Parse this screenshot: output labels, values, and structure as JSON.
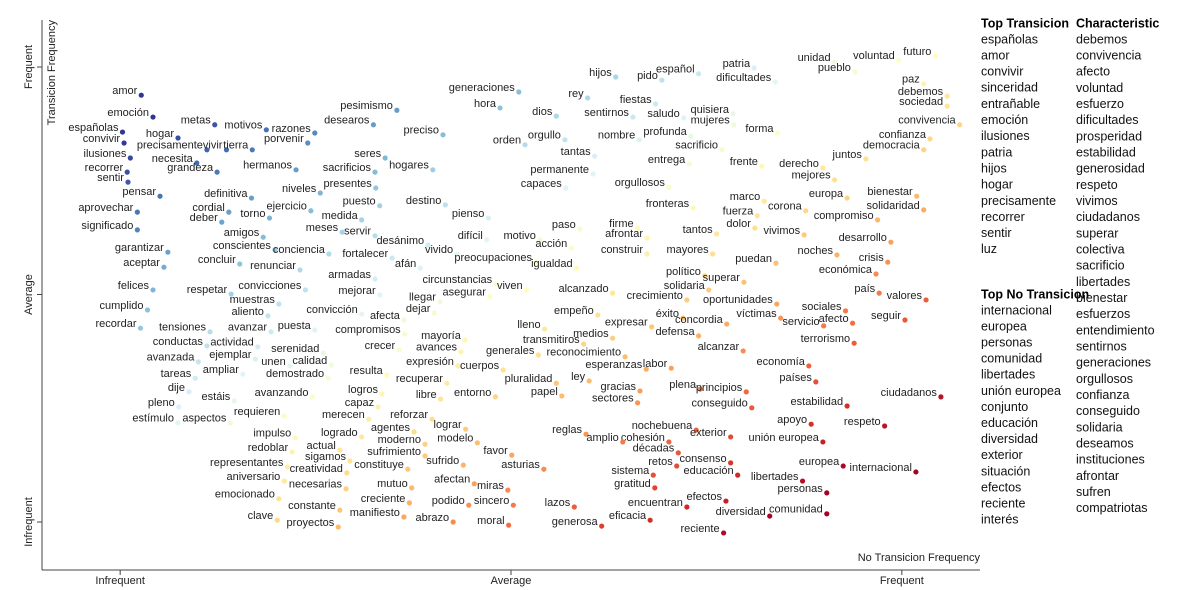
{
  "chart_data": {
    "type": "scatter",
    "x_label": "No Transicion Frequency",
    "y_label": "Transicion Frequency",
    "xlim": [
      -0.1,
      1.1
    ],
    "ylim": [
      -0.1,
      1.1
    ],
    "xticks": [
      {
        "value": 0,
        "label": "Infrequent"
      },
      {
        "value": 0.5,
        "label": "Average"
      },
      {
        "value": 1,
        "label": "Frequent"
      }
    ],
    "yticks": [
      {
        "value": 0,
        "label": "Infrequent"
      },
      {
        "value": 0.5,
        "label": "Average"
      },
      {
        "value": 1,
        "label": "Frequent"
      }
    ],
    "colors": [
      "#a50026",
      "#d73027",
      "#f46d43",
      "#fdae61",
      "#fee090",
      "#ffffbf",
      "#e0f3f8",
      "#abd9e9",
      "#74add1",
      "#4575b4",
      "#313695"
    ],
    "labels": [
      "amor",
      "emoción",
      "españolas",
      "hogar",
      "convivir",
      "precisamente",
      "vivir",
      "necesita",
      "ilusiones",
      "grandeza",
      "recorrer",
      "sentir",
      "metas",
      "motivos",
      "tierra",
      "razones",
      "porvenir",
      "hermanos",
      "pesimismo",
      "desearos",
      "pensar",
      "definitiva",
      "aprovechar",
      "cordial",
      "deber",
      "significado",
      "niveles",
      "presentes",
      "sacrificios",
      "seres",
      "ejercicio",
      "torno",
      "puesto",
      "medida",
      "servir",
      "meses",
      "amigos",
      "conscientes",
      "conciencia",
      "garantizar",
      "aceptar",
      "concluir",
      "renunciar",
      "desánimo",
      "fortalecer",
      "afán",
      "vivido",
      "armadas",
      "felices",
      "respetar",
      "convicciones",
      "mejorar",
      "cumplido",
      "muestras",
      "aliento",
      "recordar",
      "convicción",
      "llegar",
      "dejar",
      "tensiones",
      "avanzar",
      "puesta",
      "afecta",
      "compromisos",
      "conductas",
      "actividad",
      "ejemplar",
      "avanzada",
      "serenidad",
      "unen",
      "calidad",
      "crecer",
      "ampliar",
      "demostrado",
      "resulta",
      "tareas",
      "dije",
      "estáis",
      "avanzando",
      "logros",
      "capaz",
      "pleno",
      "requieren",
      "estímulo",
      "aspectos",
      "merecen",
      "reforzar",
      "agentes",
      "logrado",
      "impulso",
      "redoblar",
      "actual",
      "moderno",
      "sufrimiento",
      "sigamos",
      "representantes",
      "creatividad",
      "constituye",
      "aniversario",
      "necesarias",
      "mutuo",
      "emocionado",
      "creciente",
      "constante",
      "manifiesto",
      "clave",
      "proyectos",
      "generaciones",
      "hora",
      "dios",
      "rey",
      "hijos",
      "preciso",
      "orden",
      "orgullo",
      "tantas",
      "hogares",
      "permanente",
      "capaces",
      "destino",
      "pienso",
      "paso",
      "difícil",
      "motivo",
      "acción",
      "preocupaciones",
      "igualdad",
      "circunstancias",
      "asegurar",
      "viven",
      "alcanzado",
      "sentirnos",
      "fiestas",
      "pido",
      "español",
      "saludo",
      "quisiera",
      "mujeres",
      "nombre",
      "profunda",
      "sacrificio",
      "forma",
      "patria",
      "dificultades",
      "unidad",
      "pueblo",
      "voluntad",
      "futuro",
      "paz",
      "debemos",
      "sociedad",
      "convivencia",
      "confianza",
      "democracia",
      "juntos",
      "entrega",
      "frente",
      "derecho",
      "mejores",
      "orgullosos",
      "europa",
      "bienestar",
      "solidaridad",
      "fronteras",
      "marco",
      "fuerza",
      "corona",
      "compromiso",
      "dolor",
      "firme",
      "afrontar",
      "tantos",
      "vivimos",
      "desarrollo",
      "construir",
      "mayores",
      "noches",
      "crisis",
      "puedan",
      "político",
      "económica",
      "superar",
      "solidaria",
      "país",
      "valores",
      "crecimiento",
      "oportunidades",
      "sociales",
      "empeño",
      "éxito",
      "víctimas",
      "seguir",
      "servicio",
      "afecto",
      "expresar",
      "concordia",
      "lleno",
      "medios",
      "defensa",
      "transmitiros",
      "terrorismo",
      "mayoría",
      "avances",
      "generales",
      "alcanzar",
      "reconocimiento",
      "expresión",
      "cuerpos",
      "esperanzas",
      "labor",
      "economía",
      "ley",
      "recuperar",
      "pluralidad",
      "países",
      "plena",
      "gracias",
      "principios",
      "papel",
      "libre",
      "entorno",
      "ciudadanos",
      "sectores",
      "estabilidad",
      "conseguido",
      "apoyo",
      "respeto",
      "lograr",
      "reglas",
      "nochebuena",
      "exterior",
      "cohesión",
      "amplio",
      "unión europea",
      "modelo",
      "favor",
      "décadas",
      "sufrido",
      "consenso",
      "retos",
      "asturias",
      "europea",
      "internacional",
      "sistema",
      "educación",
      "libertades",
      "afectan",
      "gratitud",
      "miras",
      "personas",
      "podido",
      "sincero",
      "lazos",
      "efectos",
      "encuentran",
      "comunidad",
      "diversidad",
      "abrazo",
      "moral",
      "generosa",
      "eficacia",
      "reciente"
    ],
    "x": [
      0.027,
      0.042,
      0.003,
      0.074,
      0.005,
      0.111,
      0.136,
      0.098,
      0.013,
      0.124,
      0.009,
      0.01,
      0.121,
      0.187,
      0.169,
      0.249,
      0.24,
      0.225,
      0.354,
      0.324,
      0.051,
      0.168,
      0.022,
      0.139,
      0.13,
      0.022,
      0.256,
      0.327,
      0.326,
      0.339,
      0.244,
      0.191,
      0.332,
      0.309,
      0.326,
      0.284,
      0.183,
      0.198,
      0.267,
      0.061,
      0.056,
      0.153,
      0.23,
      0.394,
      0.348,
      0.384,
      0.431,
      0.326,
      0.042,
      0.142,
      0.237,
      0.332,
      0.035,
      0.203,
      0.189,
      0.026,
      0.309,
      0.409,
      0.402,
      0.115,
      0.193,
      0.249,
      0.363,
      0.364,
      0.111,
      0.176,
      0.173,
      0.1,
      0.26,
      0.217,
      0.27,
      0.357,
      0.157,
      0.266,
      0.341,
      0.096,
      0.088,
      0.146,
      0.246,
      0.335,
      0.33,
      0.075,
      0.21,
      0.074,
      0.141,
      0.318,
      0.399,
      0.376,
      0.309,
      0.224,
      0.22,
      0.281,
      0.39,
      0.39,
      0.294,
      0.214,
      0.29,
      0.368,
      0.21,
      0.289,
      0.373,
      0.203,
      0.37,
      0.281,
      0.363,
      0.201,
      0.279,
      0.51,
      0.486,
      0.558,
      0.598,
      0.634,
      0.413,
      0.518,
      0.569,
      0.607,
      0.4,
      0.605,
      0.57,
      0.416,
      0.471,
      0.588,
      0.469,
      0.537,
      0.577,
      0.532,
      0.584,
      0.481,
      0.473,
      0.52,
      0.63,
      0.656,
      0.685,
      0.693,
      0.74,
      0.721,
      0.784,
      0.785,
      0.664,
      0.73,
      0.77,
      0.841,
      0.811,
      0.838,
      0.914,
      0.94,
      0.996,
      1.043,
      1.028,
      1.058,
      1.058,
      1.074,
      1.036,
      1.028,
      0.954,
      0.728,
      0.821,
      0.899,
      0.914,
      0.702,
      0.93,
      1.019,
      1.028,
      0.733,
      0.824,
      0.815,
      0.877,
      0.969,
      0.812,
      0.662,
      0.674,
      0.763,
      0.875,
      0.986,
      0.674,
      0.758,
      0.917,
      0.982,
      0.839,
      0.748,
      0.967,
      0.798,
      0.753,
      0.971,
      1.031,
      0.725,
      0.84,
      0.928,
      0.611,
      0.72,
      0.845,
      1.004,
      0.9,
      0.937,
      0.68,
      0.776,
      0.543,
      0.63,
      0.74,
      0.593,
      0.939,
      0.441,
      0.436,
      0.535,
      0.797,
      0.646,
      0.432,
      0.49,
      0.673,
      0.705,
      0.881,
      0.6,
      0.418,
      0.558,
      0.89,
      0.742,
      0.665,
      0.801,
      0.565,
      0.41,
      0.48,
      1.05,
      0.662,
      0.93,
      0.808,
      0.884,
      0.978,
      0.442,
      0.596,
      0.737,
      0.781,
      0.702,
      0.643,
      0.899,
      0.457,
      0.501,
      0.714,
      0.439,
      0.781,
      0.712,
      0.542,
      0.925,
      1.018,
      0.682,
      0.79,
      0.873,
      0.453,
      0.684,
      0.496,
      0.904,
      0.446,
      0.503,
      0.581,
      0.775,
      0.725,
      0.904,
      0.831,
      0.426,
      0.497,
      0.616,
      0.678,
      0.772
    ],
    "y": [
      0.938,
      0.89,
      0.857,
      0.844,
      0.833,
      0.818,
      0.818,
      0.789,
      0.8,
      0.769,
      0.769,
      0.747,
      0.873,
      0.862,
      0.818,
      0.855,
      0.833,
      0.774,
      0.905,
      0.873,
      0.716,
      0.712,
      0.681,
      0.681,
      0.659,
      0.642,
      0.723,
      0.734,
      0.769,
      0.8,
      0.684,
      0.668,
      0.695,
      0.664,
      0.629,
      0.637,
      0.626,
      0.598,
      0.589,
      0.593,
      0.56,
      0.567,
      0.554,
      0.609,
      0.58,
      0.558,
      0.589,
      0.534,
      0.51,
      0.501,
      0.51,
      0.499,
      0.466,
      0.479,
      0.453,
      0.426,
      0.457,
      0.484,
      0.459,
      0.418,
      0.418,
      0.422,
      0.444,
      0.413,
      0.387,
      0.385,
      0.358,
      0.352,
      0.371,
      0.343,
      0.345,
      0.378,
      0.325,
      0.316,
      0.323,
      0.316,
      0.286,
      0.266,
      0.275,
      0.281,
      0.253,
      0.253,
      0.233,
      0.218,
      0.218,
      0.226,
      0.226,
      0.198,
      0.187,
      0.185,
      0.154,
      0.158,
      0.171,
      0.145,
      0.134,
      0.121,
      0.108,
      0.116,
      0.09,
      0.073,
      0.075,
      0.051,
      0.042,
      0.026,
      0.011,
      0.004,
      -0.011,
      0.945,
      0.91,
      0.892,
      0.932,
      0.978,
      0.851,
      0.829,
      0.84,
      0.804,
      0.774,
      0.765,
      0.734,
      0.697,
      0.668,
      0.644,
      0.62,
      0.62,
      0.602,
      0.571,
      0.558,
      0.523,
      0.495,
      0.51,
      0.503,
      0.89,
      0.919,
      0.971,
      0.985,
      0.888,
      0.897,
      0.873,
      0.84,
      0.848,
      0.818,
      0.855,
      0.998,
      0.967,
      1.011,
      0.989,
      1.015,
      1.024,
      0.963,
      0.936,
      0.914,
      0.873,
      0.842,
      0.818,
      0.798,
      0.787,
      0.782,
      0.778,
      0.752,
      0.736,
      0.712,
      0.716,
      0.686,
      0.69,
      0.705,
      0.673,
      0.684,
      0.664,
      0.646,
      0.646,
      0.624,
      0.633,
      0.631,
      0.615,
      0.589,
      0.589,
      0.587,
      0.571,
      0.569,
      0.541,
      0.545,
      0.527,
      0.51,
      0.503,
      0.488,
      0.488,
      0.479,
      0.464,
      0.455,
      0.448,
      0.448,
      0.444,
      0.431,
      0.437,
      0.429,
      0.435,
      0.424,
      0.404,
      0.409,
      0.391,
      0.393,
      0.4,
      0.374,
      0.367,
      0.376,
      0.363,
      0.343,
      0.334,
      0.336,
      0.338,
      0.343,
      0.31,
      0.305,
      0.305,
      0.308,
      0.292,
      0.288,
      0.286,
      0.277,
      0.27,
      0.275,
      0.275,
      0.262,
      0.255,
      0.251,
      0.215,
      0.211,
      0.204,
      0.193,
      0.202,
      0.187,
      0.176,
      0.176,
      0.176,
      0.174,
      0.147,
      0.152,
      0.125,
      0.13,
      0.123,
      0.116,
      0.123,
      0.11,
      0.103,
      0.103,
      0.09,
      0.084,
      0.075,
      0.07,
      0.064,
      0.037,
      0.037,
      0.033,
      0.046,
      0.033,
      0.018,
      0.013,
      0.0,
      -0.007,
      -0.009,
      0.004,
      -0.024
    ]
  },
  "sidebar": [
    {
      "title": "Top Transicion",
      "terms": [
        "españolas",
        "amor",
        "convivir",
        "sinceridad",
        "entrañable",
        "emoción",
        "ilusiones",
        "patria",
        "hijos",
        "hogar",
        "precisamente",
        "recorrer",
        "sentir",
        "luz"
      ]
    },
    {
      "title": "Top No Transicion",
      "terms": [
        "internacional",
        "europea",
        "personas",
        "comunidad",
        "libertades",
        "unión europea",
        "conjunto",
        "educación",
        "diversidad",
        "exterior",
        "situación",
        "efectos",
        "reciente",
        "interés"
      ]
    },
    {
      "title": "Characteristic",
      "terms": [
        "debemos",
        "convivencia",
        "afecto",
        "voluntad",
        "esfuerzo",
        "dificultades",
        "prosperidad",
        "estabilidad",
        "generosidad",
        "respeto",
        "vivimos",
        "ciudadanos",
        "superar",
        "colectiva",
        "sacrificio",
        "libertades",
        "bienestar",
        "esfuerzos",
        "entendimiento",
        "sentirnos",
        "generaciones",
        "orgullosos",
        "confianza",
        "conseguido",
        "solidaria",
        "deseamos",
        "instituciones",
        "afrontar",
        "sufren",
        "compatriotas"
      ]
    }
  ]
}
